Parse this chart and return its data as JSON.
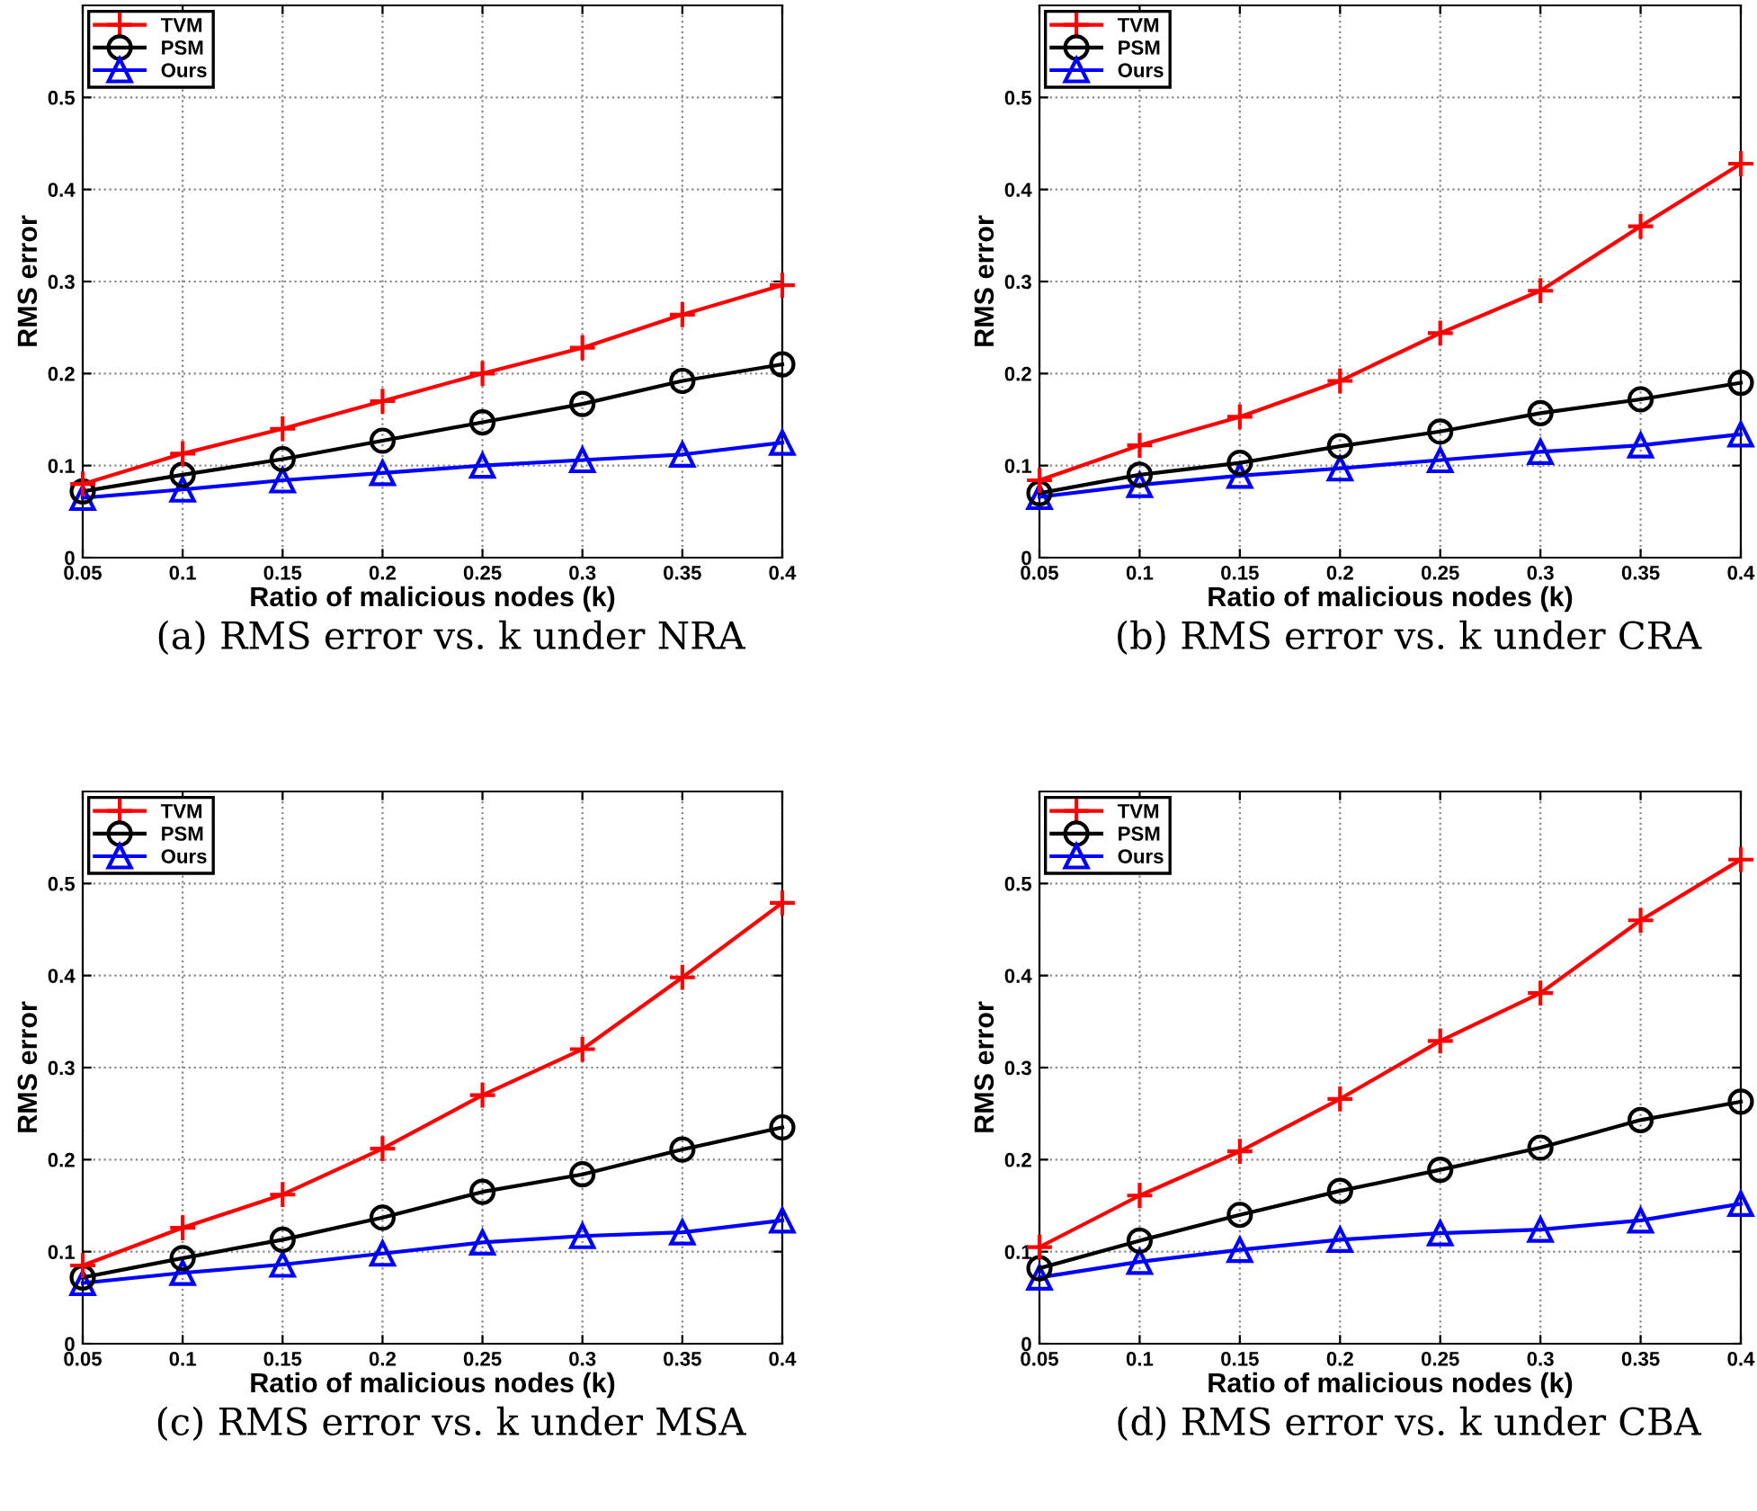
{
  "chart_data": [
    {
      "type": "line",
      "title": "(a) RMS error vs. k under NRA",
      "xlabel": "Ratio of malicious nodes (k)",
      "ylabel": "RMS error",
      "x": [
        0.05,
        0.1,
        0.15,
        0.2,
        0.25,
        0.3,
        0.35,
        0.4
      ],
      "xlim": [
        0.05,
        0.4
      ],
      "xticks": [
        0.05,
        0.1,
        0.15,
        0.2,
        0.25,
        0.3,
        0.35,
        0.4
      ],
      "ylim": [
        0,
        0.6
      ],
      "yticks": [
        0,
        0.1,
        0.2,
        0.3,
        0.4,
        0.5
      ],
      "grid": true,
      "legend": "top left",
      "line_style": "solid",
      "series": [
        {
          "name": "TVM",
          "color": "#ff0000",
          "marker": "cross",
          "values": [
            0.08,
            0.113,
            0.14,
            0.17,
            0.2,
            0.228,
            0.264,
            0.296
          ]
        },
        {
          "name": "PSM",
          "color": "#000000",
          "marker": "circle",
          "values": [
            0.072,
            0.09,
            0.107,
            0.127,
            0.147,
            0.167,
            0.192,
            0.21
          ]
        },
        {
          "name": "Ours",
          "color": "#0000ff",
          "marker": "triangle",
          "values": [
            0.065,
            0.074,
            0.084,
            0.092,
            0.1,
            0.106,
            0.112,
            0.125
          ]
        }
      ]
    },
    {
      "type": "line",
      "title": "(b) RMS error vs. k under CRA",
      "xlabel": "Ratio of malicious nodes (k)",
      "ylabel": "RMS error",
      "x": [
        0.05,
        0.1,
        0.15,
        0.2,
        0.25,
        0.3,
        0.35,
        0.4
      ],
      "xlim": [
        0.05,
        0.4
      ],
      "xticks": [
        0.05,
        0.1,
        0.15,
        0.2,
        0.25,
        0.3,
        0.35,
        0.4
      ],
      "ylim": [
        0,
        0.6
      ],
      "yticks": [
        0,
        0.1,
        0.2,
        0.3,
        0.4,
        0.5
      ],
      "grid": true,
      "legend": "top left",
      "line_style": "solid",
      "series": [
        {
          "name": "TVM",
          "color": "#ff0000",
          "marker": "cross",
          "values": [
            0.084,
            0.122,
            0.153,
            0.192,
            0.244,
            0.29,
            0.36,
            0.428
          ]
        },
        {
          "name": "PSM",
          "color": "#000000",
          "marker": "circle",
          "values": [
            0.07,
            0.09,
            0.103,
            0.121,
            0.137,
            0.157,
            0.172,
            0.19
          ]
        },
        {
          "name": "Ours",
          "color": "#0000ff",
          "marker": "triangle",
          "values": [
            0.066,
            0.079,
            0.089,
            0.097,
            0.106,
            0.115,
            0.122,
            0.134
          ]
        }
      ]
    },
    {
      "type": "line",
      "title": "(c) RMS error vs. k under MSA",
      "xlabel": "Ratio of malicious nodes (k)",
      "ylabel": "RMS error",
      "x": [
        0.05,
        0.1,
        0.15,
        0.2,
        0.25,
        0.3,
        0.35,
        0.4
      ],
      "xlim": [
        0.05,
        0.4
      ],
      "xticks": [
        0.05,
        0.1,
        0.15,
        0.2,
        0.25,
        0.3,
        0.35,
        0.4
      ],
      "ylim": [
        0,
        0.6
      ],
      "yticks": [
        0,
        0.1,
        0.2,
        0.3,
        0.4,
        0.5
      ],
      "grid": true,
      "legend": "top left",
      "line_style": "solid",
      "series": [
        {
          "name": "TVM",
          "color": "#ff0000",
          "marker": "cross",
          "values": [
            0.085,
            0.126,
            0.162,
            0.212,
            0.27,
            0.32,
            0.398,
            0.479
          ]
        },
        {
          "name": "PSM",
          "color": "#000000",
          "marker": "circle",
          "values": [
            0.072,
            0.093,
            0.113,
            0.137,
            0.165,
            0.184,
            0.211,
            0.235
          ]
        },
        {
          "name": "Ours",
          "color": "#0000ff",
          "marker": "triangle",
          "values": [
            0.066,
            0.077,
            0.086,
            0.098,
            0.11,
            0.117,
            0.121,
            0.134
          ]
        }
      ]
    },
    {
      "type": "line",
      "title": "(d) RMS error vs. k under CBA",
      "xlabel": "Ratio of malicious nodes (k)",
      "ylabel": "RMS error",
      "x": [
        0.05,
        0.1,
        0.15,
        0.2,
        0.25,
        0.3,
        0.35,
        0.4
      ],
      "xlim": [
        0.05,
        0.4
      ],
      "xticks": [
        0.05,
        0.1,
        0.15,
        0.2,
        0.25,
        0.3,
        0.35,
        0.4
      ],
      "ylim": [
        0,
        0.6
      ],
      "yticks": [
        0,
        0.1,
        0.2,
        0.3,
        0.4,
        0.5
      ],
      "grid": true,
      "legend": "top left",
      "line_style": "solid",
      "series": [
        {
          "name": "TVM",
          "color": "#ff0000",
          "marker": "cross",
          "values": [
            0.105,
            0.161,
            0.209,
            0.266,
            0.329,
            0.381,
            0.46,
            0.526
          ]
        },
        {
          "name": "PSM",
          "color": "#000000",
          "marker": "circle",
          "values": [
            0.082,
            0.112,
            0.14,
            0.166,
            0.189,
            0.213,
            0.243,
            0.263
          ]
        },
        {
          "name": "Ours",
          "color": "#0000ff",
          "marker": "triangle",
          "values": [
            0.072,
            0.089,
            0.102,
            0.113,
            0.12,
            0.124,
            0.134,
            0.152
          ]
        }
      ]
    }
  ]
}
